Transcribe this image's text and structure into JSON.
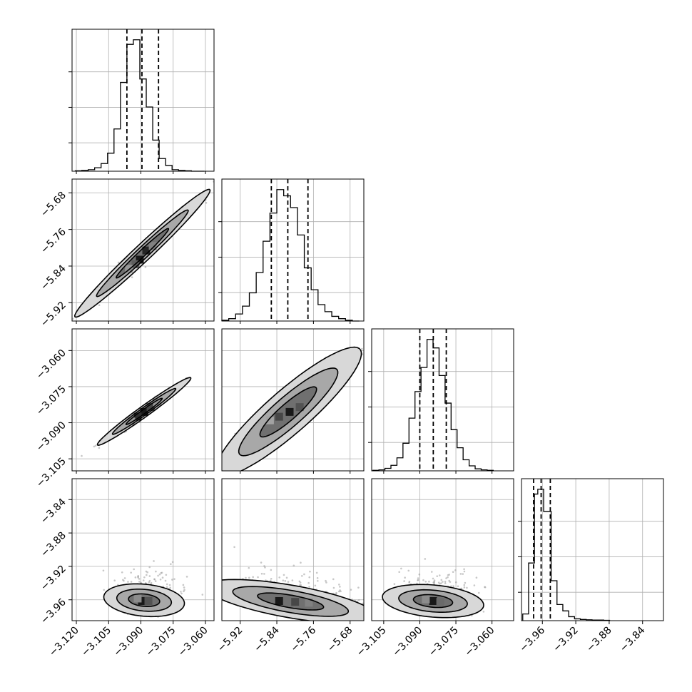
{
  "chart_data": {
    "type": "corner",
    "parameters": [
      {
        "range": [
          -3.122,
          -3.056
        ],
        "ticks": [
          -3.12,
          -3.105,
          -3.09,
          -3.075,
          -3.06
        ],
        "tick_labels": [
          "−3.120",
          "−3.105",
          "−3.090",
          "−3.075",
          "−3.060"
        ],
        "quantiles": [
          -3.0965,
          -3.0895,
          -3.0818
        ],
        "hist_bins": [
          -3.1205,
          -3.1175,
          -3.1145,
          -3.1115,
          -3.1085,
          -3.1055,
          -3.1025,
          -3.0995,
          -3.0965,
          -3.0935,
          -3.0905,
          -3.0875,
          -3.0845,
          -3.0815,
          -3.0785,
          -3.0755,
          -3.0725,
          -3.0695,
          -3.0665,
          -3.0635,
          -3.0605
        ],
        "hist_counts": [
          1,
          2,
          4,
          9,
          20,
          47,
          110,
          231,
          330,
          342,
          240,
          167,
          81,
          33,
          15,
          4,
          2,
          1,
          0,
          0
        ]
      },
      {
        "range": [
          -5.96,
          -5.65
        ],
        "ticks": [
          -5.92,
          -5.84,
          -5.76,
          -5.68
        ],
        "tick_labels": [
          "−5.92",
          "−5.84",
          "−5.76",
          "−5.68"
        ],
        "quantiles": [
          -5.852,
          -5.816,
          -5.772
        ],
        "hist_bins": [
          -5.96,
          -5.945,
          -5.93,
          -5.915,
          -5.9,
          -5.885,
          -5.87,
          -5.855,
          -5.84,
          -5.825,
          -5.81,
          -5.795,
          -5.78,
          -5.765,
          -5.75,
          -5.735,
          -5.72,
          -5.705,
          -5.69,
          -5.675,
          -5.66
        ],
        "hist_counts": [
          1,
          3,
          9,
          19,
          36,
          62,
          102,
          138,
          168,
          160,
          145,
          110,
          68,
          40,
          21,
          12,
          6,
          3,
          1,
          0
        ]
      },
      {
        "range": [
          -3.11,
          -3.051
        ],
        "ticks": [
          -3.105,
          -3.09,
          -3.075,
          -3.06
        ],
        "tick_labels": [
          "−3.105",
          "−3.090",
          "−3.075",
          "−3.060"
        ],
        "quantiles": [
          -3.09,
          -3.0844,
          -3.079
        ],
        "hist_bins": [
          -3.1095,
          -3.107,
          -3.1045,
          -3.102,
          -3.0995,
          -3.097,
          -3.0945,
          -3.092,
          -3.0895,
          -3.087,
          -3.0845,
          -3.082,
          -3.0795,
          -3.077,
          -3.0745,
          -3.072,
          -3.0695,
          -3.067,
          -3.0645,
          -3.062,
          -3.0595
        ],
        "hist_counts": [
          1,
          2,
          5,
          11,
          26,
          55,
          105,
          158,
          206,
          262,
          245,
          190,
          135,
          82,
          46,
          22,
          10,
          4,
          2,
          1
        ]
      },
      {
        "range": [
          -3.985,
          -3.815
        ],
        "ticks": [
          -3.96,
          -3.92,
          -3.88,
          -3.84
        ],
        "tick_labels": [
          "−3.96",
          "−3.92",
          "−3.88",
          "−3.84"
        ],
        "quantiles": [
          -3.9705,
          -3.9615,
          -3.9505
        ],
        "hist_bins": [
          -3.9835,
          -3.9765,
          -3.9695,
          -3.9655,
          -3.9585,
          -3.9495,
          -3.9425,
          -3.9355,
          -3.9285,
          -3.9215,
          -3.9145,
          -3.9075,
          -3.9005,
          -3.8935,
          -3.8865,
          -3.8795
        ],
        "hist_counts": [
          22,
          189,
          415,
          431,
          358,
          131,
          53,
          32,
          13,
          6,
          4,
          3,
          2,
          2,
          1
        ]
      }
    ],
    "pairs": [
      {
        "row": 1,
        "col": 0,
        "center": [
          -3.0893,
          -5.812
        ],
        "v1": [
          0.02,
          0.09
        ],
        "v2": [
          -0.0035,
          0.0008
        ],
        "levels": [
          0.6,
          1.05,
          1.55
        ],
        "density": [
          [
            -3.0905,
            -5.826,
            1.0
          ],
          [
            -3.0875,
            -5.806,
            0.95
          ],
          [
            -3.0925,
            -5.836,
            0.7
          ],
          [
            -3.0845,
            -5.796,
            0.55
          ],
          [
            -3.0955,
            -5.846,
            0.45
          ]
        ]
      },
      {
        "row": 2,
        "col": 0,
        "center": [
          -3.0885,
          -3.0853
        ],
        "v1": [
          0.014,
          0.009
        ],
        "v2": [
          -0.0009,
          0.0012
        ],
        "levels": [
          0.6,
          1.05,
          1.55
        ],
        "density": [
          [
            -3.0885,
            -3.0855,
            1.0
          ],
          [
            -3.0915,
            -3.0875,
            0.9
          ],
          [
            -3.0855,
            -3.0835,
            0.8
          ],
          [
            -3.0945,
            -3.0895,
            0.45
          ],
          [
            -3.0825,
            -3.0815,
            0.45
          ]
        ]
      },
      {
        "row": 2,
        "col": 1,
        "center": [
          -5.815,
          -3.0855
        ],
        "v1": [
          0.1,
          0.017
        ],
        "v2": [
          -0.025,
          0.0035
        ],
        "levels": [
          0.6,
          1.05,
          1.55
        ],
        "density": [
          [
            -5.812,
            -3.0855,
            1.0
          ],
          [
            -5.835,
            -3.0875,
            0.8
          ],
          [
            -5.79,
            -3.0835,
            0.75
          ],
          [
            -5.855,
            -3.089,
            0.4
          ]
        ]
      },
      {
        "row": 3,
        "col": 0,
        "center": [
          -3.0885,
          -3.9605
        ],
        "v1": [
          0.012,
          -0.004
        ],
        "v2": [
          0.0015,
          0.012
        ],
        "levels": [
          0.6,
          1.05,
          1.55
        ],
        "density": [
          [
            -3.0895,
            -3.9615,
            1.0
          ],
          [
            -3.0865,
            -3.9615,
            0.75
          ],
          [
            -3.0915,
            -3.9585,
            0.5
          ]
        ]
      },
      {
        "row": 3,
        "col": 1,
        "center": [
          -5.81,
          -3.962
        ],
        "v1": [
          0.12,
          -0.012
        ],
        "v2": [
          0.008,
          0.012
        ],
        "levels": [
          0.6,
          1.05,
          1.55
        ],
        "density": [
          [
            -5.835,
            -3.9615,
            1.0
          ],
          [
            -5.8,
            -3.9625,
            0.8
          ],
          [
            -5.77,
            -3.9635,
            0.55
          ]
        ]
      },
      {
        "row": 3,
        "col": 2,
        "center": [
          -3.0845,
          -3.9615
        ],
        "v1": [
          0.0135,
          -0.0045
        ],
        "v2": [
          0.0015,
          0.012
        ],
        "levels": [
          0.6,
          1.05,
          1.55
        ],
        "density": [
          [
            -3.0845,
            -3.9615,
            1.0
          ],
          [
            -3.0815,
            -3.9625,
            0.65
          ],
          [
            -3.0875,
            -3.9595,
            0.5
          ]
        ]
      }
    ]
  }
}
